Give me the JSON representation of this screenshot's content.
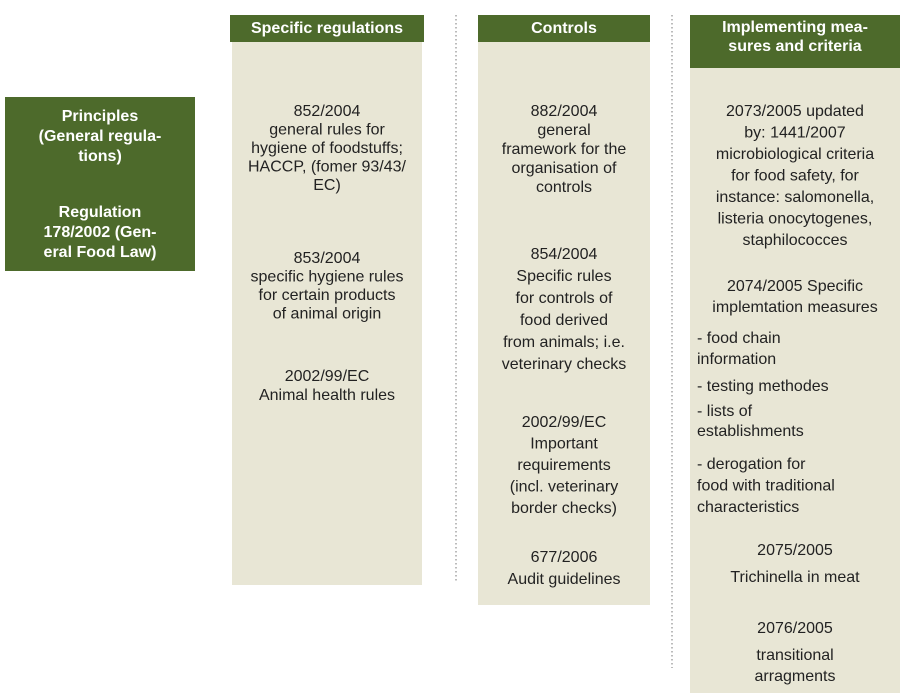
{
  "principles": {
    "title": [
      "Principles",
      "(General regula-",
      "tions)"
    ],
    "regulation": [
      "Regulation",
      "178/2002 (Gen-",
      "eral Food Law)"
    ]
  },
  "columns": [
    {
      "header": [
        "Specific regulations"
      ],
      "blocks": [
        [
          "852/2004",
          "general rules for",
          "hygiene of foodstuffs;",
          "HACCP, (fomer 93/43/",
          "EC)"
        ],
        [
          "853/2004",
          "specific hygiene rules",
          "for certain products",
          "of animal origin"
        ],
        [
          "2002/99/EC",
          "Animal health rules"
        ]
      ]
    },
    {
      "header": [
        "Controls"
      ],
      "blocks": [
        [
          "882/2004",
          "general",
          "framework for the",
          "organisation of",
          "controls"
        ],
        [
          "854/2004",
          "Specific rules",
          "for controls of",
          "food derived",
          "from animals; i.e.",
          "veterinary checks"
        ],
        [
          "2002/99/EC",
          "Important",
          "requirements",
          "(incl. veterinary",
          "border checks)"
        ],
        [
          "677/2006",
          "Audit guidelines"
        ]
      ]
    },
    {
      "header": [
        "Implementing mea-",
        "sures and criteria"
      ],
      "blocks": [
        [
          "2073/2005 updated",
          "by: 1441/2007",
          "microbiological criteria",
          "for food safety, for",
          "instance: salomonella,",
          "listeria onocytogenes,",
          "staphilococces"
        ],
        [
          "2074/2005 Specific",
          "implemtation measures"
        ],
        [
          "- food chain",
          "information"
        ],
        [
          "- testing methodes"
        ],
        [
          "- lists of",
          "establishments"
        ],
        [
          "- derogation for",
          "food with traditional",
          "characteristics"
        ],
        [
          "2075/2005"
        ],
        [
          "Trichinella in meat"
        ],
        [
          "2076/2005"
        ],
        [
          "transitional",
          "arragments"
        ]
      ]
    }
  ]
}
